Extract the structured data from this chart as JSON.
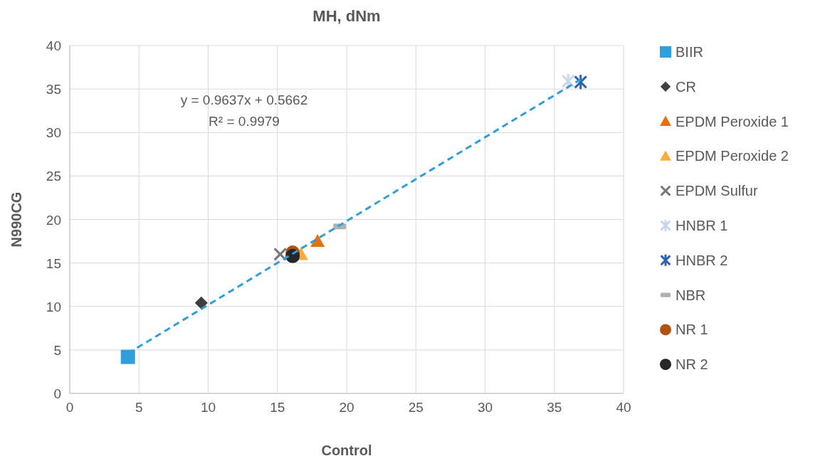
{
  "chart_data": {
    "type": "scatter",
    "title": "MH, dNm",
    "xlabel": "Control",
    "ylabel": "N990CG",
    "xlim": [
      0,
      40
    ],
    "xticks": [
      0,
      5,
      10,
      15,
      20,
      25,
      30,
      35,
      40
    ],
    "ylim": [
      0,
      40
    ],
    "yticks": [
      0,
      5,
      10,
      15,
      20,
      25,
      30,
      35,
      40
    ],
    "grid": true,
    "legend": "right",
    "series": [
      {
        "name": "BIIR",
        "color": "#2e9fdc",
        "marker": "square",
        "x": [
          4.2
        ],
        "values": [
          4.2
        ]
      },
      {
        "name": "CR",
        "color": "#404040",
        "marker": "diamond",
        "x": [
          9.5
        ],
        "values": [
          10.4
        ]
      },
      {
        "name": "EPDM Peroxide 1",
        "color": "#e8700a",
        "marker": "triangle",
        "x": [
          17.9
        ],
        "values": [
          17.5
        ]
      },
      {
        "name": "EPDM Peroxide 2",
        "color": "#fcab3a",
        "marker": "triangle",
        "x": [
          16.7
        ],
        "values": [
          16.0
        ]
      },
      {
        "name": "EPDM Sulfur",
        "color": "#777777",
        "marker": "cross",
        "x": [
          15.2
        ],
        "values": [
          16.0
        ]
      },
      {
        "name": "HNBR 1",
        "color": "#c5d8f0",
        "marker": "cross",
        "x": [
          36.0
        ],
        "values": [
          35.9
        ]
      },
      {
        "name": "HNBR 2",
        "color": "#2f62ae",
        "marker": "cross",
        "x": [
          36.9
        ],
        "values": [
          35.8
        ]
      },
      {
        "name": "NBR",
        "color": "#b0b0b0",
        "marker": "square",
        "x": [
          19.5
        ],
        "values": [
          19.2
        ]
      },
      {
        "name": "NR 1",
        "color": "#b1530f",
        "marker": "circle",
        "x": [
          16.1
        ],
        "values": [
          16.2
        ]
      },
      {
        "name": "NR 2",
        "color": "#262626",
        "marker": "circle",
        "x": [
          16.1
        ],
        "values": [
          15.8
        ]
      },
      {
        "type": "line",
        "color": "#2e9fdc",
        "line_style": "dashed",
        "marker": "none",
        "x": [
          4.2,
          36.9
        ],
        "values": [
          4.6,
          36.1
        ]
      }
    ],
    "annotations": [
      "y = 0.9637x + 0.5662",
      "R² = 0.9979"
    ]
  }
}
